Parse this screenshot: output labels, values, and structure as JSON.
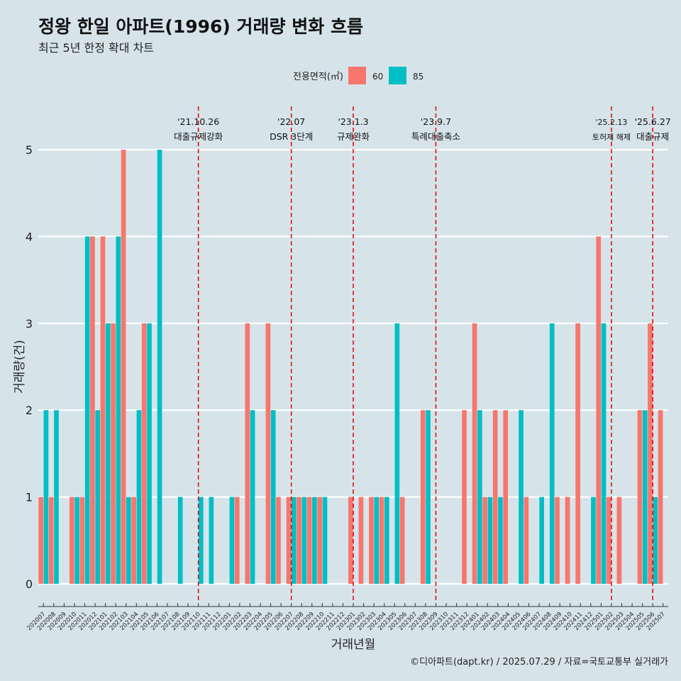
{
  "title": "정왕 한일 아파트(1996) 거래량 변화 흐름",
  "subtitle": "최근 5년 한정 확대 차트",
  "caption": "©디아파트(dapt.kr) / 2025.07.29 / 자료=국토교통부 실거래가",
  "colors": {
    "s60": "#f8766d",
    "s85": "#00bfc4",
    "event": "#e00000",
    "grid": "#ffffff",
    "background": "#d6e4ea"
  },
  "chart_data": {
    "type": "bar",
    "title": "정왕 한일 아파트(1996) 거래량 변화 흐름",
    "subtitle": "최근 5년 한정 확대 차트",
    "xlabel": "거래년월",
    "ylabel": "거래량(건)",
    "ylim": [
      0,
      5
    ],
    "yticks": [
      0,
      1,
      2,
      3,
      4,
      5
    ],
    "legend": {
      "title": "전용면적(㎡)",
      "position": "top",
      "entries": [
        "60",
        "85"
      ]
    },
    "categories": [
      "202007",
      "202008",
      "202009",
      "202010",
      "202011",
      "202012",
      "202101",
      "202102",
      "202103",
      "202104",
      "202105",
      "202106",
      "202107",
      "202108",
      "202109",
      "202110",
      "202111",
      "202112",
      "202201",
      "202202",
      "202203",
      "202204",
      "202205",
      "202206",
      "202207",
      "202208",
      "202209",
      "202210",
      "202211",
      "202212",
      "202301",
      "202302",
      "202303",
      "202304",
      "202305",
      "202306",
      "202307",
      "202308",
      "202309",
      "202310",
      "202311",
      "202312",
      "202401",
      "202402",
      "202403",
      "202404",
      "202405",
      "202406",
      "202407",
      "202408",
      "202409",
      "202410",
      "202411",
      "202412",
      "202501",
      "202502",
      "202503",
      "202504",
      "202505",
      "202506",
      "202507"
    ],
    "series": [
      {
        "name": "60",
        "values": [
          1,
          1,
          0,
          1,
          1,
          4,
          4,
          3,
          5,
          1,
          3,
          0,
          0,
          0,
          0,
          0,
          0,
          0,
          0,
          1,
          3,
          0,
          3,
          1,
          1,
          1,
          1,
          1,
          0,
          0,
          1,
          1,
          1,
          1,
          0,
          1,
          0,
          2,
          0,
          0,
          0,
          2,
          3,
          1,
          2,
          2,
          0,
          1,
          0,
          0,
          1,
          1,
          3,
          0,
          4,
          1,
          1,
          0,
          2,
          3,
          2
        ]
      },
      {
        "name": "85",
        "values": [
          2,
          2,
          0,
          1,
          4,
          2,
          3,
          4,
          1,
          2,
          3,
          5,
          0,
          1,
          0,
          1,
          1,
          0,
          1,
          0,
          2,
          0,
          2,
          0,
          1,
          1,
          1,
          1,
          0,
          0,
          0,
          0,
          1,
          1,
          3,
          0,
          0,
          2,
          0,
          0,
          0,
          0,
          2,
          1,
          1,
          0,
          2,
          0,
          1,
          3,
          0,
          0,
          0,
          1,
          3,
          0,
          0,
          0,
          2,
          1,
          0
        ]
      }
    ],
    "events": [
      {
        "date": "'21.10.26",
        "label": "대출규제강화",
        "month": "202110"
      },
      {
        "date": "'22.07",
        "label": "DSR 3단계",
        "month": "202207"
      },
      {
        "date": "'23.1.3",
        "label": "규제완화",
        "month": "202301"
      },
      {
        "date": "'23.9.7",
        "label": "특례대출축소",
        "month": "202309"
      },
      {
        "date": "'25.2.13",
        "label": "토허제 해제",
        "month": "202502"
      },
      {
        "date": "'25.6.27",
        "label": "대출규제",
        "month": "202506"
      }
    ]
  }
}
